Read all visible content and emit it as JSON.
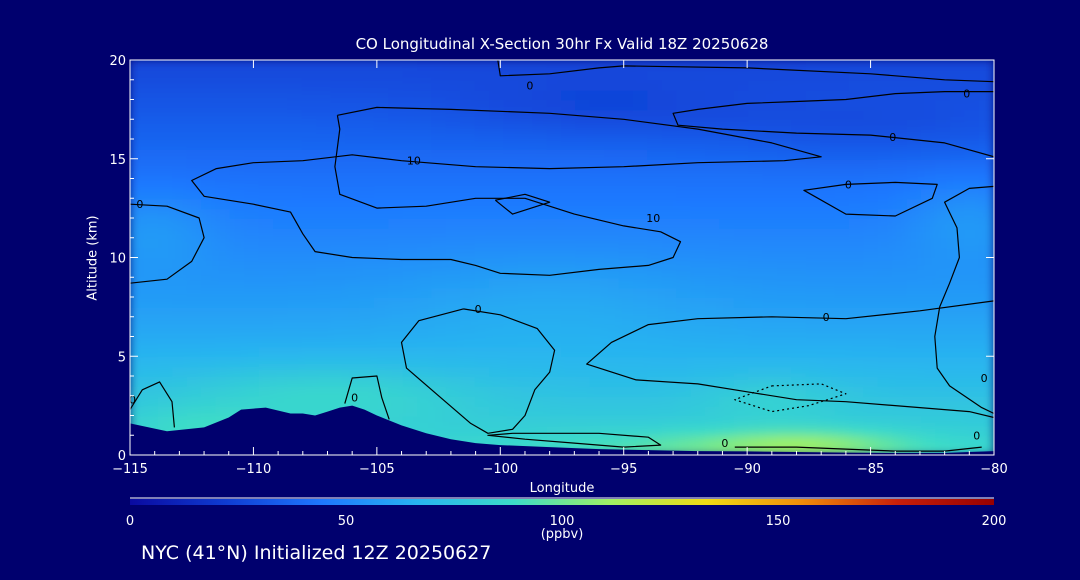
{
  "footer": {
    "text": "NYC (41°N) Initialized 12Z 20250627"
  },
  "colors": {
    "background": "#00006e",
    "terrain": "#00006e",
    "text": "#ffffff",
    "contour": "#000000"
  },
  "chart_data": {
    "type": "heatmap",
    "title": "CO Longitudinal X-Section 30hr  Fx Valid 18Z 20250628",
    "xlabel": "Longitude",
    "ylabel": "Altitude (km)",
    "xlim": [
      -115,
      -80
    ],
    "ylim": [
      0,
      20
    ],
    "x_ticks": [
      -115,
      -110,
      -105,
      -100,
      -95,
      -90,
      -85,
      -80
    ],
    "x_tick_labels": [
      "−115",
      "−110",
      "−105",
      "−100",
      "−95",
      "−90",
      "−85",
      "−80"
    ],
    "y_ticks": [
      0,
      5,
      10,
      15,
      20
    ],
    "y_tick_labels": [
      "0",
      "5",
      "10",
      "15",
      "20"
    ],
    "grid": false,
    "colorbar": {
      "orientation": "horizontal",
      "placement": "bottom",
      "range": [
        0,
        200
      ],
      "ticks": [
        0,
        50,
        100,
        150,
        200
      ],
      "tick_labels": [
        "0",
        "50",
        "100",
        "150",
        "200"
      ],
      "unit": "(ppbv)",
      "colors": [
        "#0a0aa0",
        "#0f3cd2",
        "#1e78ff",
        "#28b4f0",
        "#3cdcc8",
        "#a0f064",
        "#f0dc14",
        "#f08c0a",
        "#c81e0a",
        "#960000"
      ]
    },
    "co_profile": {
      "altitude_km": [
        0,
        1,
        2,
        3,
        4,
        6,
        8,
        10,
        12,
        14,
        16,
        18,
        20
      ],
      "co_ppbv": [
        88,
        82,
        78,
        74,
        70,
        63,
        57,
        52,
        47,
        42,
        37,
        31,
        26
      ]
    },
    "anomalies": [
      {
        "lon": -107,
        "alt": 3.2,
        "rx": 6,
        "ry": 1.5,
        "delta": 12
      },
      {
        "lon": -112,
        "alt": 1.5,
        "rx": 3,
        "ry": 1.0,
        "delta": 8
      },
      {
        "lon": -87.5,
        "alt": 0.6,
        "rx": 4,
        "ry": 0.7,
        "delta": 22
      },
      {
        "lon": -92,
        "alt": 0.5,
        "rx": 6,
        "ry": 0.8,
        "delta": 10
      },
      {
        "lon": -89,
        "alt": 3.0,
        "rx": 3,
        "ry": 1.2,
        "delta": 8
      },
      {
        "lon": -81,
        "alt": 12,
        "rx": 2.5,
        "ry": 2.0,
        "delta": 9
      },
      {
        "lon": -114,
        "alt": 11.5,
        "rx": 2.5,
        "ry": 2.0,
        "delta": 8
      },
      {
        "lon": -98,
        "alt": 8,
        "rx": 6,
        "ry": 2.5,
        "delta": 5
      },
      {
        "lon": -96,
        "alt": 17.5,
        "rx": 6,
        "ry": 1.5,
        "delta": -6
      },
      {
        "lon": -85,
        "alt": 16.5,
        "rx": 7,
        "ry": 1.5,
        "delta": -6
      }
    ],
    "terrain": {
      "lon": [
        -115,
        -113.5,
        -112,
        -111,
        -110.5,
        -109.5,
        -108.5,
        -108,
        -107.5,
        -107,
        -106.5,
        -106,
        -105.5,
        -105,
        -104,
        -103,
        -102,
        -101,
        -100,
        -98,
        -96,
        -94,
        -92,
        -90,
        -88,
        -86,
        -84,
        -82,
        -81,
        -80
      ],
      "alt": [
        1.6,
        1.2,
        1.4,
        1.9,
        2.3,
        2.4,
        2.1,
        2.1,
        2.0,
        2.2,
        2.4,
        2.5,
        2.3,
        2.0,
        1.5,
        1.1,
        0.8,
        0.6,
        0.5,
        0.4,
        0.3,
        0.25,
        0.2,
        0.18,
        0.15,
        0.12,
        0.1,
        0.1,
        0.15,
        0.2
      ]
    },
    "contours": [
      {
        "style": "solid",
        "points": [
          [
            -100.1,
            20
          ],
          [
            -100,
            19.2
          ],
          [
            -98,
            19.3
          ],
          [
            -96,
            19.6
          ],
          [
            -95,
            19.7
          ],
          [
            -90,
            19.6
          ],
          [
            -85,
            19.3
          ],
          [
            -82,
            19.0
          ],
          [
            -80,
            18.9
          ]
        ]
      },
      {
        "style": "solid",
        "points": [
          [
            -80,
            18.4
          ],
          [
            -82,
            18.4
          ],
          [
            -84,
            18.3
          ],
          [
            -86,
            18.0
          ],
          [
            -88,
            17.9
          ],
          [
            -90,
            17.8
          ],
          [
            -92,
            17.5
          ],
          [
            -93,
            17.3
          ],
          [
            -92.8,
            16.7
          ],
          [
            -91,
            16.5
          ],
          [
            -88,
            16.3
          ],
          [
            -85,
            16.2
          ],
          [
            -82,
            15.8
          ],
          [
            -80,
            15.1
          ]
        ]
      },
      {
        "style": "solid",
        "points": [
          [
            -106.6,
            17.2
          ],
          [
            -105,
            17.6
          ],
          [
            -102,
            17.5
          ],
          [
            -98,
            17.3
          ],
          [
            -95,
            17.0
          ],
          [
            -92,
            16.5
          ],
          [
            -89,
            15.8
          ],
          [
            -87,
            15.1
          ],
          [
            -88.5,
            14.9
          ],
          [
            -92,
            14.8
          ],
          [
            -95,
            14.6
          ],
          [
            -98,
            14.5
          ],
          [
            -101,
            14.6
          ],
          [
            -104,
            14.9
          ],
          [
            -106,
            15.2
          ],
          [
            -108,
            14.9
          ],
          [
            -110,
            14.8
          ],
          [
            -111.5,
            14.5
          ],
          [
            -112.5,
            13.9
          ],
          [
            -112,
            13.1
          ],
          [
            -110,
            12.7
          ],
          [
            -108.5,
            12.3
          ],
          [
            -108,
            11.2
          ],
          [
            -107.5,
            10.3
          ],
          [
            -106,
            10.0
          ],
          [
            -104,
            9.9
          ],
          [
            -102,
            9.9
          ],
          [
            -101,
            9.6
          ],
          [
            -100,
            9.2
          ],
          [
            -98,
            9.1
          ],
          [
            -96,
            9.4
          ],
          [
            -94,
            9.6
          ],
          [
            -93,
            10.0
          ],
          [
            -92.7,
            10.8
          ],
          [
            -93.5,
            11.3
          ],
          [
            -95,
            11.6
          ],
          [
            -97,
            12.2
          ],
          [
            -99,
            13.0
          ],
          [
            -101,
            13.0
          ],
          [
            -103,
            12.6
          ],
          [
            -105,
            12.5
          ],
          [
            -106.5,
            13.2
          ],
          [
            -106.7,
            14.6
          ],
          [
            -106.5,
            16.5
          ],
          [
            -106.6,
            17.2
          ]
        ]
      },
      {
        "style": "solid",
        "points": [
          [
            -115,
            12.7
          ],
          [
            -113.5,
            12.6
          ],
          [
            -112.2,
            12.0
          ],
          [
            -112,
            11.0
          ],
          [
            -112.5,
            9.8
          ],
          [
            -113.5,
            8.9
          ],
          [
            -115,
            8.7
          ]
        ]
      },
      {
        "style": "solid",
        "points": [
          [
            -100.2,
            12.9
          ],
          [
            -99,
            13.2
          ],
          [
            -98,
            12.8
          ],
          [
            -99.5,
            12.2
          ],
          [
            -100.2,
            12.9
          ]
        ]
      },
      {
        "style": "solid",
        "points": [
          [
            -86,
            13.7
          ],
          [
            -84,
            13.8
          ],
          [
            -82.3,
            13.7
          ],
          [
            -82.5,
            13.0
          ],
          [
            -84,
            12.1
          ],
          [
            -86,
            12.2
          ],
          [
            -87.7,
            13.4
          ],
          [
            -86,
            13.7
          ]
        ]
      },
      {
        "style": "solid",
        "points": [
          [
            -80,
            13.6
          ],
          [
            -81,
            13.5
          ],
          [
            -82,
            12.8
          ],
          [
            -81.5,
            11.5
          ],
          [
            -81.4,
            10.0
          ],
          [
            -81.8,
            8.7
          ],
          [
            -82.2,
            7.5
          ],
          [
            -82.4,
            6.0
          ],
          [
            -82.3,
            4.4
          ],
          [
            -81.8,
            3.5
          ],
          [
            -80.5,
            2.4
          ],
          [
            -80,
            2.1
          ]
        ]
      },
      {
        "style": "solid",
        "points": [
          [
            -80,
            7.8
          ],
          [
            -83,
            7.3
          ],
          [
            -86,
            6.9
          ],
          [
            -89,
            7.0
          ],
          [
            -92,
            6.9
          ],
          [
            -94,
            6.6
          ],
          [
            -95.5,
            5.7
          ],
          [
            -96.5,
            4.6
          ],
          [
            -94.5,
            3.8
          ],
          [
            -92,
            3.6
          ],
          [
            -90,
            3.2
          ],
          [
            -88,
            2.8
          ],
          [
            -86,
            2.7
          ],
          [
            -83,
            2.4
          ],
          [
            -81,
            2.2
          ],
          [
            -80,
            1.9
          ]
        ]
      },
      {
        "style": "solid",
        "points": [
          [
            -101.5,
            7.4
          ],
          [
            -100,
            7.1
          ],
          [
            -98.5,
            6.4
          ],
          [
            -97.8,
            5.3
          ],
          [
            -98,
            4.2
          ],
          [
            -98.6,
            3.3
          ],
          [
            -99,
            2.0
          ],
          [
            -99.5,
            1.3
          ],
          [
            -100.5,
            1.1
          ],
          [
            -101.2,
            1.6
          ],
          [
            -102.5,
            3.0
          ],
          [
            -103.8,
            4.4
          ],
          [
            -104,
            5.7
          ],
          [
            -103.3,
            6.8
          ],
          [
            -101.5,
            7.4
          ]
        ]
      },
      {
        "style": "solid",
        "points": [
          [
            -99.5,
            1.1
          ],
          [
            -96,
            1.1
          ],
          [
            -94,
            0.9
          ],
          [
            -93.5,
            0.5
          ],
          [
            -95,
            0.4
          ],
          [
            -97,
            0.6
          ],
          [
            -99,
            0.8
          ],
          [
            -100.5,
            1.0
          ],
          [
            -99.5,
            1.1
          ]
        ]
      },
      {
        "style": "solid",
        "points": [
          [
            -90.5,
            0.4
          ],
          [
            -88,
            0.4
          ],
          [
            -86,
            0.3
          ],
          [
            -84,
            0.2
          ],
          [
            -82,
            0.2
          ],
          [
            -80.5,
            0.4
          ]
        ]
      },
      {
        "style": "solid",
        "points": [
          [
            -106.3,
            2.6
          ],
          [
            -106,
            3.9
          ],
          [
            -105,
            4.0
          ],
          [
            -104.8,
            2.9
          ],
          [
            -104.5,
            1.8
          ]
        ]
      },
      {
        "style": "solid",
        "points": [
          [
            -115,
            2.3
          ],
          [
            -114.5,
            3.3
          ],
          [
            -113.8,
            3.7
          ],
          [
            -113.3,
            2.7
          ],
          [
            -113.2,
            1.4
          ]
        ]
      },
      {
        "style": "dotted",
        "points": [
          [
            -89,
            3.5
          ],
          [
            -87,
            3.6
          ],
          [
            -86,
            3.1
          ],
          [
            -87.5,
            2.5
          ],
          [
            -89,
            2.2
          ],
          [
            -90.5,
            2.8
          ],
          [
            -89,
            3.5
          ]
        ]
      }
    ],
    "contour_labels": [
      {
        "text": "0",
        "lon": -98.8,
        "alt": 18.7
      },
      {
        "text": "0",
        "lon": -81.1,
        "alt": 18.3
      },
      {
        "text": "0",
        "lon": -84.1,
        "alt": 16.1
      },
      {
        "text": "10",
        "lon": -103.5,
        "alt": 14.9
      },
      {
        "text": "0",
        "lon": -114.6,
        "alt": 12.7
      },
      {
        "text": "10",
        "lon": -93.8,
        "alt": 12.0
      },
      {
        "text": "0",
        "lon": -85.9,
        "alt": 13.7
      },
      {
        "text": "0",
        "lon": -100.9,
        "alt": 7.4
      },
      {
        "text": "0",
        "lon": -86.8,
        "alt": 7.0
      },
      {
        "text": "0",
        "lon": -80.4,
        "alt": 3.9
      },
      {
        "text": "0",
        "lon": -80.7,
        "alt": 1.0
      },
      {
        "text": "0",
        "lon": -90.9,
        "alt": 0.6
      },
      {
        "text": "0",
        "lon": -105.9,
        "alt": 2.9
      },
      {
        "text": "0",
        "lon": -114.9,
        "alt": 2.8
      }
    ]
  }
}
